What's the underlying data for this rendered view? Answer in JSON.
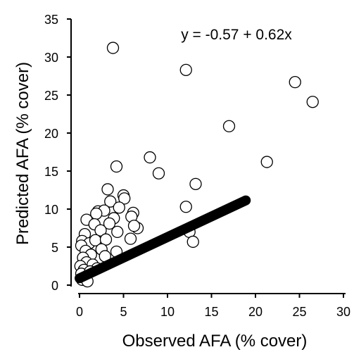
{
  "chart_data": {
    "type": "scatter",
    "xlabel": "Observed AFA (% cover)",
    "ylabel": "Predicted AFA (% cover)",
    "xlim": [
      0,
      30
    ],
    "ylim": [
      0,
      35
    ],
    "xticks": [
      "0",
      "5",
      "10",
      "15",
      "20",
      "25",
      "30"
    ],
    "yticks": [
      "0",
      "5",
      "10",
      "15",
      "20",
      "25",
      "30",
      "35"
    ],
    "grid": false,
    "annotation": "y = -0.57 + 0.62x",
    "fit_line": {
      "intercept": -0.57,
      "slope": 0.62,
      "x_range": [
        0,
        18.9
      ]
    },
    "points": [
      {
        "x": 3.8,
        "y": 31.2
      },
      {
        "x": 12.1,
        "y": 28.3
      },
      {
        "x": 24.5,
        "y": 26.7
      },
      {
        "x": 26.5,
        "y": 24.1
      },
      {
        "x": 17.0,
        "y": 20.9
      },
      {
        "x": 21.3,
        "y": 16.2
      },
      {
        "x": 8.0,
        "y": 16.8
      },
      {
        "x": 4.2,
        "y": 15.6
      },
      {
        "x": 9.0,
        "y": 14.7
      },
      {
        "x": 13.2,
        "y": 13.3
      },
      {
        "x": 3.2,
        "y": 12.6
      },
      {
        "x": 5.0,
        "y": 11.8
      },
      {
        "x": 5.1,
        "y": 11.4
      },
      {
        "x": 3.5,
        "y": 11.0
      },
      {
        "x": 12.1,
        "y": 10.3
      },
      {
        "x": 4.5,
        "y": 10.2
      },
      {
        "x": 2.1,
        "y": 9.7
      },
      {
        "x": 2.8,
        "y": 9.8
      },
      {
        "x": 1.9,
        "y": 9.4
      },
      {
        "x": 6.1,
        "y": 9.5
      },
      {
        "x": 0.8,
        "y": 8.6
      },
      {
        "x": 3.9,
        "y": 8.8
      },
      {
        "x": 5.9,
        "y": 9.0
      },
      {
        "x": 1.7,
        "y": 8.0
      },
      {
        "x": 3.4,
        "y": 8.1
      },
      {
        "x": 6.6,
        "y": 7.5
      },
      {
        "x": 6.2,
        "y": 7.8
      },
      {
        "x": 12.5,
        "y": 7.0
      },
      {
        "x": 0.6,
        "y": 6.7
      },
      {
        "x": 2.4,
        "y": 7.2
      },
      {
        "x": 4.3,
        "y": 7.0
      },
      {
        "x": 5.8,
        "y": 6.1
      },
      {
        "x": 12.9,
        "y": 5.7
      },
      {
        "x": 0.3,
        "y": 5.8
      },
      {
        "x": 1.1,
        "y": 5.5
      },
      {
        "x": 1.8,
        "y": 5.9
      },
      {
        "x": 3.0,
        "y": 6.0
      },
      {
        "x": 0.2,
        "y": 5.2
      },
      {
        "x": 0.7,
        "y": 4.5
      },
      {
        "x": 2.5,
        "y": 4.7
      },
      {
        "x": 4.2,
        "y": 4.4
      },
      {
        "x": 1.3,
        "y": 4.0
      },
      {
        "x": 0.4,
        "y": 3.6
      },
      {
        "x": 2.9,
        "y": 3.8
      },
      {
        "x": 0.8,
        "y": 3.0
      },
      {
        "x": 0.1,
        "y": 2.5
      },
      {
        "x": 1.5,
        "y": 2.7
      },
      {
        "x": 0.5,
        "y": 2.0
      },
      {
        "x": 2.0,
        "y": 2.2
      },
      {
        "x": 0.2,
        "y": 1.5
      },
      {
        "x": 1.2,
        "y": 1.8
      },
      {
        "x": 0.6,
        "y": 1.0
      },
      {
        "x": 0.3,
        "y": 0.7
      },
      {
        "x": 0.9,
        "y": 0.5
      }
    ]
  }
}
